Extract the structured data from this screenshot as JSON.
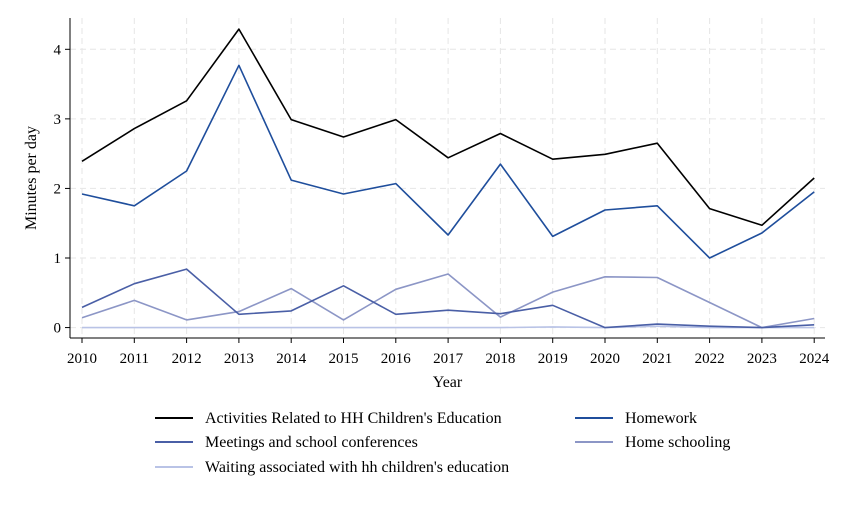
{
  "chart_data": {
    "type": "line",
    "title": "",
    "xlabel": "Year",
    "ylabel": "Minutes per day",
    "x": [
      2010,
      2011,
      2012,
      2013,
      2014,
      2015,
      2016,
      2017,
      2018,
      2019,
      2020,
      2021,
      2022,
      2023,
      2024
    ],
    "xticks": [
      "2010",
      "2011",
      "2012",
      "2013",
      "2014",
      "2015",
      "2016",
      "2017",
      "2018",
      "2019",
      "2020",
      "2021",
      "2022",
      "2023",
      "2024"
    ],
    "ylim": [
      -0.15,
      4.45
    ],
    "yticks": [
      "0",
      "1",
      "2",
      "3",
      "4"
    ],
    "ytick_values": [
      0,
      1,
      2,
      3,
      4
    ],
    "grid": true,
    "legend_position": "bottom",
    "series": [
      {
        "name": "Activities Related to HH Children's Education",
        "color": "#000000",
        "values": [
          2.39,
          2.86,
          3.26,
          4.29,
          2.99,
          2.74,
          2.99,
          2.44,
          2.79,
          2.42,
          2.49,
          2.65,
          1.71,
          1.47,
          2.15
        ]
      },
      {
        "name": "Homework",
        "color": "#1f4e9c",
        "values": [
          1.92,
          1.75,
          2.25,
          3.77,
          2.12,
          1.92,
          2.07,
          1.33,
          2.35,
          1.31,
          1.69,
          1.75,
          1.0,
          1.36,
          1.95
        ]
      },
      {
        "name": "Meetings and school conferences",
        "color": "#4a5fa6",
        "values": [
          0.29,
          0.63,
          0.84,
          0.19,
          0.24,
          0.6,
          0.19,
          0.25,
          0.2,
          0.32,
          0.0,
          0.05,
          0.02,
          0.0,
          0.04
        ]
      },
      {
        "name": "Home schooling",
        "color": "#8c96c6",
        "values": [
          0.14,
          0.39,
          0.11,
          0.23,
          0.56,
          0.11,
          0.55,
          0.77,
          0.15,
          0.51,
          0.73,
          0.72,
          0.36,
          0.0,
          0.13
        ]
      },
      {
        "name": "Waiting associated with hh children's education",
        "color": "#b9c3e6",
        "values": [
          0.0,
          0.0,
          0.0,
          0.0,
          0.0,
          0.0,
          0.0,
          0.0,
          0.0,
          0.01,
          0.0,
          0.02,
          0.0,
          0.0,
          0.0
        ]
      }
    ]
  }
}
